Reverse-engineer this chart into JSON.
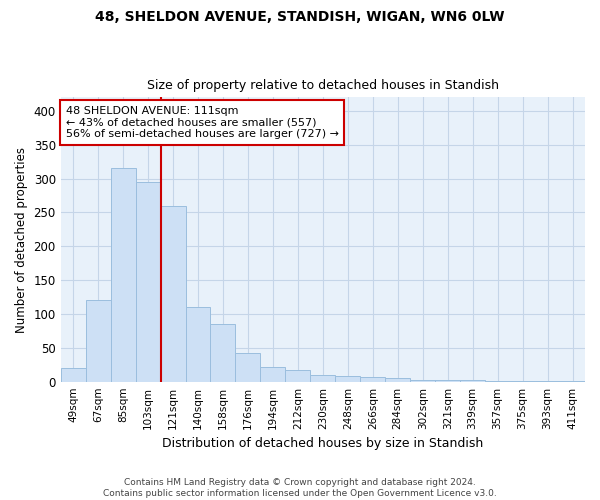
{
  "title1": "48, SHELDON AVENUE, STANDISH, WIGAN, WN6 0LW",
  "title2": "Size of property relative to detached houses in Standish",
  "xlabel": "Distribution of detached houses by size in Standish",
  "ylabel": "Number of detached properties",
  "categories": [
    "49sqm",
    "67sqm",
    "85sqm",
    "103sqm",
    "121sqm",
    "140sqm",
    "158sqm",
    "176sqm",
    "194sqm",
    "212sqm",
    "230sqm",
    "248sqm",
    "266sqm",
    "284sqm",
    "302sqm",
    "321sqm",
    "339sqm",
    "357sqm",
    "375sqm",
    "393sqm",
    "411sqm"
  ],
  "values": [
    20,
    120,
    315,
    295,
    260,
    110,
    85,
    43,
    21,
    17,
    10,
    8,
    7,
    5,
    3,
    2,
    2,
    1,
    1,
    1,
    1
  ],
  "bar_color": "#cde0f5",
  "bar_edge_color": "#9bbede",
  "grid_color": "#c5d5e8",
  "background_color": "#e8f1fa",
  "vline_color": "#cc0000",
  "annotation_text": "48 SHELDON AVENUE: 111sqm\n← 43% of detached houses are smaller (557)\n56% of semi-detached houses are larger (727) →",
  "annotation_box_facecolor": "#ffffff",
  "annotation_box_edgecolor": "#cc0000",
  "footer": "Contains HM Land Registry data © Crown copyright and database right 2024.\nContains public sector information licensed under the Open Government Licence v3.0.",
  "ylim": [
    0,
    420
  ],
  "yticks": [
    0,
    50,
    100,
    150,
    200,
    250,
    300,
    350,
    400
  ],
  "figsize": [
    6.0,
    5.0
  ],
  "dpi": 100
}
